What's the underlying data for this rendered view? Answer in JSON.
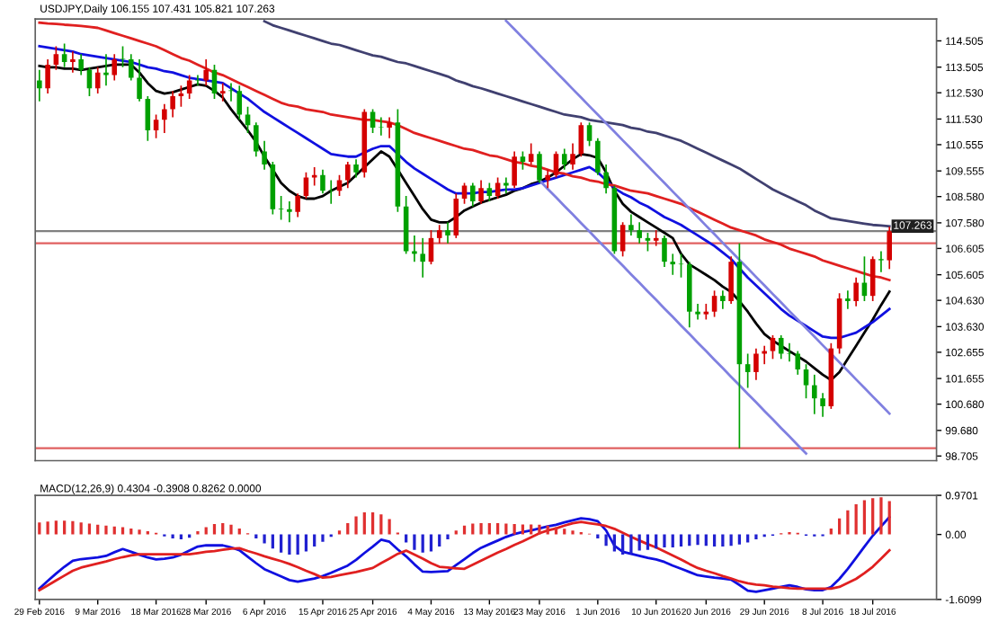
{
  "chart_data": [
    {
      "type": "candlestick",
      "title": "USDJPY,Daily 106.155 107.431 105.821 107.263",
      "categories": [
        null,
        null,
        null,
        null,
        null,
        null,
        null,
        null,
        null,
        null,
        null,
        null,
        null,
        null,
        null,
        null,
        null,
        null,
        null,
        null,
        null,
        null,
        null,
        null,
        null,
        null,
        null,
        null,
        null,
        null,
        null,
        null,
        null,
        null,
        null,
        null,
        null,
        null,
        null,
        null,
        null,
        null,
        null,
        null,
        null,
        null,
        null,
        null,
        null,
        null,
        null,
        null,
        null,
        null,
        null,
        null,
        null,
        null,
        null,
        null,
        null,
        null,
        null,
        null,
        null,
        null,
        null,
        null,
        null,
        null,
        null,
        null,
        null,
        null,
        null,
        null,
        null,
        null,
        null,
        null,
        null,
        null,
        null,
        null,
        null,
        null,
        null,
        null,
        null,
        null,
        null,
        null,
        null,
        null,
        null,
        null,
        null,
        null,
        null,
        null,
        null,
        null,
        null
      ],
      "ohlc": [
        [
          113.0,
          113.4,
          112.2,
          112.7
        ],
        [
          112.7,
          113.8,
          112.5,
          113.6
        ],
        [
          113.6,
          114.3,
          113.4,
          114.0
        ],
        [
          114.0,
          114.4,
          113.5,
          113.7
        ],
        [
          113.7,
          114.1,
          113.3,
          113.8
        ],
        [
          113.8,
          114.0,
          113.2,
          113.4
        ],
        [
          113.4,
          113.5,
          112.4,
          112.7
        ],
        [
          112.7,
          113.5,
          112.5,
          113.3
        ],
        [
          113.3,
          114.0,
          112.8,
          113.2
        ],
        [
          113.2,
          114.0,
          113.0,
          113.8
        ],
        [
          113.8,
          114.3,
          113.5,
          113.8
        ],
        [
          113.8,
          114.0,
          113.0,
          113.1
        ],
        [
          113.1,
          113.8,
          112.2,
          112.3
        ],
        [
          112.3,
          112.4,
          110.7,
          111.1
        ],
        [
          111.1,
          111.7,
          110.8,
          111.5
        ],
        [
          111.5,
          112.1,
          111.0,
          111.9
        ],
        [
          111.9,
          112.6,
          111.6,
          112.4
        ],
        [
          112.4,
          112.8,
          112.0,
          112.5
        ],
        [
          112.5,
          113.2,
          112.3,
          113.0
        ],
        [
          113.0,
          113.2,
          112.8,
          113.0
        ],
        [
          113.0,
          113.8,
          112.8,
          113.4
        ],
        [
          113.4,
          113.6,
          112.3,
          112.5
        ],
        [
          112.5,
          112.9,
          112.2,
          112.6
        ],
        [
          112.6,
          112.9,
          112.2,
          112.6
        ],
        [
          112.6,
          112.8,
          111.5,
          111.7
        ],
        [
          111.7,
          112.0,
          111.0,
          111.3
        ],
        [
          111.3,
          111.4,
          110.1,
          110.3
        ],
        [
          110.3,
          110.7,
          109.6,
          109.8
        ],
        [
          109.8,
          109.9,
          107.9,
          108.1
        ],
        [
          108.1,
          108.6,
          107.7,
          108.1
        ],
        [
          108.1,
          108.4,
          107.6,
          108.0
        ],
        [
          108.0,
          108.7,
          107.8,
          108.6
        ],
        [
          108.6,
          109.5,
          108.5,
          109.3
        ],
        [
          109.3,
          109.7,
          109.0,
          109.4
        ],
        [
          109.4,
          109.6,
          108.7,
          108.8
        ],
        [
          108.8,
          109.2,
          108.3,
          108.8
        ],
        [
          108.8,
          109.4,
          108.6,
          109.2
        ],
        [
          109.2,
          109.9,
          108.9,
          109.8
        ],
        [
          109.8,
          110.0,
          109.3,
          109.5
        ],
        [
          109.5,
          111.9,
          109.3,
          111.8
        ],
        [
          111.8,
          111.9,
          111.0,
          111.2
        ],
        [
          111.2,
          111.6,
          110.9,
          111.2
        ],
        [
          111.2,
          111.6,
          110.8,
          111.4
        ],
        [
          111.4,
          111.9,
          108.0,
          108.2
        ],
        [
          108.2,
          108.6,
          106.4,
          106.5
        ],
        [
          106.5,
          107.1,
          106.1,
          106.4
        ],
        [
          106.4,
          107.0,
          105.5,
          106.1
        ],
        [
          106.1,
          107.3,
          106.0,
          107.0
        ],
        [
          107.0,
          107.5,
          106.8,
          107.3
        ],
        [
          107.3,
          107.6,
          106.8,
          107.1
        ],
        [
          107.1,
          108.7,
          107.0,
          108.5
        ],
        [
          108.5,
          109.1,
          108.3,
          109.0
        ],
        [
          109.0,
          109.1,
          108.2,
          108.4
        ],
        [
          108.4,
          109.2,
          108.3,
          108.9
        ],
        [
          108.9,
          109.1,
          108.4,
          108.6
        ],
        [
          108.6,
          109.3,
          108.5,
          109.1
        ],
        [
          109.1,
          109.3,
          108.7,
          109.0
        ],
        [
          109.0,
          110.3,
          108.9,
          110.1
        ],
        [
          110.1,
          110.3,
          109.6,
          109.9
        ],
        [
          109.9,
          110.6,
          109.8,
          110.2
        ],
        [
          110.2,
          110.3,
          109.1,
          109.2
        ],
        [
          109.2,
          109.6,
          108.9,
          109.4
        ],
        [
          109.4,
          110.3,
          109.3,
          110.2
        ],
        [
          110.2,
          110.4,
          109.6,
          109.8
        ],
        [
          109.8,
          110.6,
          109.6,
          110.2
        ],
        [
          110.2,
          111.4,
          110.1,
          111.3
        ],
        [
          111.3,
          111.4,
          110.5,
          110.7
        ],
        [
          110.7,
          110.8,
          109.4,
          109.5
        ],
        [
          109.5,
          109.8,
          108.7,
          108.9
        ],
        [
          108.9,
          109.0,
          106.4,
          106.5
        ],
        [
          106.5,
          107.6,
          106.3,
          107.5
        ],
        [
          107.5,
          107.9,
          107.1,
          107.3
        ],
        [
          107.3,
          107.6,
          106.8,
          107.0
        ],
        [
          107.0,
          107.2,
          106.5,
          106.9
        ],
        [
          106.9,
          107.3,
          106.7,
          107.0
        ],
        [
          107.0,
          107.1,
          105.9,
          106.1
        ],
        [
          106.1,
          106.4,
          105.6,
          106.0
        ],
        [
          106.0,
          106.4,
          105.5,
          106.0
        ],
        [
          106.0,
          106.1,
          103.6,
          104.2
        ],
        [
          104.2,
          104.5,
          103.9,
          104.1
        ],
        [
          104.1,
          104.5,
          103.9,
          104.2
        ],
        [
          104.2,
          105.0,
          104.0,
          104.8
        ],
        [
          104.8,
          105.0,
          104.3,
          104.6
        ],
        [
          104.6,
          106.3,
          104.5,
          106.1
        ],
        [
          106.1,
          106.8,
          99.0,
          102.2
        ],
        [
          102.2,
          102.6,
          101.3,
          101.9
        ],
        [
          101.9,
          102.8,
          101.6,
          102.6
        ],
        [
          102.6,
          102.9,
          102.2,
          102.7
        ],
        [
          102.7,
          103.3,
          102.4,
          103.2
        ],
        [
          103.2,
          103.3,
          102.4,
          102.6
        ],
        [
          102.6,
          103.0,
          102.3,
          102.6
        ],
        [
          102.6,
          102.7,
          101.8,
          102.0
        ],
        [
          102.0,
          102.2,
          100.9,
          101.4
        ],
        [
          101.4,
          101.8,
          100.3,
          100.9
        ],
        [
          100.9,
          101.1,
          100.2,
          100.6
        ],
        [
          100.6,
          103.0,
          100.5,
          102.8
        ],
        [
          102.8,
          104.9,
          102.6,
          104.7
        ],
        [
          104.7,
          105.0,
          104.3,
          104.6
        ],
        [
          104.6,
          105.5,
          104.4,
          105.3
        ],
        [
          105.3,
          106.3,
          104.6,
          104.8
        ],
        [
          104.8,
          106.3,
          104.6,
          106.2
        ],
        [
          106.2,
          106.5,
          105.7,
          106.155
        ],
        [
          106.155,
          107.431,
          105.821,
          107.263
        ]
      ],
      "colors": [
        "#00a000",
        "#d40000",
        "#d40000",
        "#00a000",
        "#d40000",
        "#00a000",
        "#00a000",
        "#d40000",
        "#00a000",
        "#d40000",
        "#00a000",
        "#00a000",
        "#00a000",
        "#00a000",
        "#d40000",
        "#d40000",
        "#d40000",
        "#d40000",
        "#d40000",
        "#00a000",
        "#d40000",
        "#00a000",
        "#d40000",
        "#00a000",
        "#00a000",
        "#00a000",
        "#00a000",
        "#00a000",
        "#00a000",
        "#00a000",
        "#00a000",
        "#d40000",
        "#d40000",
        "#d40000",
        "#00a000",
        "#00a000",
        "#d40000",
        "#d40000",
        "#00a000",
        "#d40000",
        "#00a000",
        "#00a000",
        "#d40000",
        "#00a000",
        "#00a000",
        "#00a000",
        "#00a000",
        "#d40000",
        "#d40000",
        "#00a000",
        "#d40000",
        "#d40000",
        "#00a000",
        "#d40000",
        "#00a000",
        "#d40000",
        "#00a000",
        "#d40000",
        "#00a000",
        "#d40000",
        "#00a000",
        "#d40000",
        "#d40000",
        "#00a000",
        "#d40000",
        "#d40000",
        "#00a000",
        "#00a000",
        "#00a000",
        "#00a000",
        "#d40000",
        "#00a000",
        "#00a000",
        "#00a000",
        "#d40000",
        "#00a000",
        "#00a000",
        "#00a000",
        "#00a000",
        "#00a000",
        "#d40000",
        "#d40000",
        "#00a000",
        "#d40000",
        "#00a000",
        "#00a000",
        "#d40000",
        "#d40000",
        "#d40000",
        "#00a000",
        "#00a000",
        "#00a000",
        "#00a000",
        "#00a000",
        "#00a000",
        "#d40000",
        "#d40000",
        "#00a000",
        "#d40000",
        "#00a000",
        "#d40000",
        "#00a000",
        "#d40000"
      ],
      "series": [
        {
          "type": "line",
          "color": "#000000",
          "values": [
            113.55,
            113.5,
            113.5,
            113.45,
            113.45,
            113.4,
            113.45,
            113.5,
            113.55,
            113.6,
            113.6,
            113.6,
            113.3,
            112.9,
            112.6,
            112.5,
            112.55,
            112.65,
            112.75,
            112.85,
            112.8,
            112.6,
            112.35,
            111.9,
            111.5,
            111.1,
            110.66,
            110.1,
            109.6,
            109.1,
            108.8,
            108.6,
            108.5,
            108.5,
            108.6,
            108.8,
            108.95,
            109.1,
            109.4,
            109.7,
            110.0,
            110.3,
            110.1,
            109.6,
            109.1,
            108.6,
            108.1,
            107.7,
            107.6,
            107.6,
            107.8,
            108.05,
            108.2,
            108.35,
            108.45,
            108.55,
            108.65,
            108.8,
            108.9,
            109.05,
            109.15,
            109.3,
            109.5,
            109.75,
            110.0,
            110.2,
            110.15,
            110.05,
            109.5,
            108.8,
            108.3,
            108.0,
            107.8,
            107.6,
            107.4,
            107.2,
            107.0,
            106.4,
            106.0,
            105.8,
            105.6,
            105.4,
            105.15,
            104.95,
            104.6,
            104.2,
            103.75,
            103.35,
            103.1,
            102.9,
            102.7,
            102.5,
            102.3,
            102.05,
            101.8,
            101.6,
            101.9,
            102.4,
            102.9,
            103.4,
            103.9,
            104.45,
            104.96
          ]
        },
        {
          "type": "line",
          "color": "#1010e0",
          "values": [
            114.3,
            114.25,
            114.2,
            114.15,
            114.1,
            114.0,
            113.95,
            113.9,
            113.85,
            113.8,
            113.75,
            113.7,
            113.6,
            113.5,
            113.45,
            113.35,
            113.3,
            113.2,
            113.1,
            113.05,
            113.0,
            112.95,
            112.9,
            112.7,
            112.5,
            112.3,
            112.05,
            111.8,
            111.6,
            111.4,
            111.2,
            111.0,
            110.8,
            110.6,
            110.4,
            110.2,
            110.15,
            110.1,
            110.1,
            110.25,
            110.4,
            110.5,
            110.5,
            110.2,
            109.9,
            109.65,
            109.45,
            109.25,
            109.05,
            108.85,
            108.7,
            108.7,
            108.7,
            108.75,
            108.75,
            108.8,
            108.85,
            108.85,
            108.9,
            109.0,
            109.1,
            109.2,
            109.3,
            109.4,
            109.5,
            109.6,
            109.7,
            109.5,
            109.2,
            108.9,
            108.7,
            108.55,
            108.35,
            108.2,
            108.0,
            107.8,
            107.65,
            107.5,
            107.3,
            107.1,
            106.9,
            106.7,
            106.45,
            106.2,
            105.85,
            105.5,
            105.2,
            104.9,
            104.6,
            104.3,
            104.05,
            103.85,
            103.65,
            103.45,
            103.25,
            103.2,
            103.2,
            103.3,
            103.4,
            103.6,
            103.8,
            104.05,
            104.3
          ]
        },
        {
          "type": "line",
          "color": "#e02020",
          "values": [
            115.2,
            115.17,
            115.15,
            115.12,
            115.1,
            115.07,
            115.04,
            115.0,
            114.9,
            114.8,
            114.7,
            114.6,
            114.5,
            114.4,
            114.3,
            114.15,
            114.0,
            113.85,
            113.75,
            113.6,
            113.45,
            113.3,
            113.2,
            113.05,
            112.9,
            112.75,
            112.6,
            112.45,
            112.3,
            112.15,
            112.05,
            112.0,
            111.9,
            111.85,
            111.8,
            111.7,
            111.65,
            111.6,
            111.55,
            111.5,
            111.5,
            111.45,
            111.4,
            111.3,
            111.15,
            111.0,
            110.9,
            110.8,
            110.7,
            110.6,
            110.5,
            110.4,
            110.35,
            110.25,
            110.15,
            110.1,
            110.0,
            109.9,
            109.85,
            109.75,
            109.7,
            109.6,
            109.5,
            109.45,
            109.35,
            109.3,
            109.2,
            109.15,
            109.05,
            109.0,
            108.9,
            108.8,
            108.75,
            108.7,
            108.6,
            108.5,
            108.4,
            108.3,
            108.15,
            108.0,
            107.85,
            107.7,
            107.55,
            107.4,
            107.3,
            107.2,
            107.1,
            106.95,
            106.85,
            106.75,
            106.6,
            106.5,
            106.4,
            106.3,
            106.15,
            106.05,
            105.95,
            105.85,
            105.75,
            105.65,
            105.55,
            105.5,
            105.4
          ]
        },
        {
          "type": "line",
          "color": "#404070",
          "values": [
            null,
            null,
            null,
            null,
            null,
            null,
            null,
            null,
            null,
            null,
            null,
            null,
            null,
            null,
            null,
            null,
            null,
            null,
            null,
            null,
            null,
            null,
            null,
            null,
            null,
            null,
            null,
            115.25,
            115.1,
            115.0,
            114.9,
            114.8,
            114.7,
            114.6,
            114.5,
            114.4,
            114.35,
            114.25,
            114.15,
            114.05,
            113.95,
            113.9,
            113.8,
            113.7,
            113.65,
            113.55,
            113.45,
            113.35,
            113.25,
            113.15,
            113.0,
            112.9,
            112.78,
            112.7,
            112.6,
            112.5,
            112.4,
            112.3,
            112.2,
            112.1,
            112.0,
            111.9,
            111.8,
            111.7,
            111.65,
            111.6,
            111.5,
            111.45,
            111.4,
            111.35,
            111.3,
            111.2,
            111.15,
            111.05,
            111.0,
            110.9,
            110.8,
            110.7,
            110.55,
            110.4,
            110.25,
            110.1,
            109.95,
            109.8,
            109.65,
            109.45,
            109.25,
            109.05,
            108.85,
            108.7,
            108.55,
            108.4,
            108.25,
            108.05,
            107.9,
            107.75,
            107.7,
            107.65,
            107.6,
            107.55,
            107.5,
            107.48,
            107.45
          ]
        },
        {
          "type": "line",
          "color": "#8080e0",
          "values": [
            null,
            null,
            null,
            null,
            null,
            null,
            null,
            null,
            null,
            null,
            null,
            null,
            null,
            null,
            null,
            null,
            null,
            null,
            null,
            null,
            null,
            null,
            null,
            null,
            null,
            null,
            null,
            null,
            null,
            null,
            null,
            null,
            null,
            null,
            null,
            null,
            null,
            null,
            null,
            null,
            null,
            null,
            null,
            null,
            null,
            null,
            null,
            null,
            null,
            null,
            null,
            null,
            null,
            null,
            null,
            null,
            115.27,
            114.95,
            114.62,
            114.3,
            113.97,
            113.65,
            113.32,
            113.0,
            112.67,
            112.35,
            112.02,
            111.7,
            111.37,
            111.05,
            110.72,
            110.4,
            110.07,
            109.75,
            109.42,
            109.1,
            108.77,
            108.45,
            108.12,
            107.8,
            107.47,
            107.15,
            106.82,
            106.5,
            106.17,
            105.85,
            105.52,
            105.2,
            104.87,
            104.55,
            104.22,
            103.9,
            103.57,
            103.25,
            102.92,
            102.6,
            102.27,
            101.95,
            101.62,
            101.3,
            100.97,
            100.65,
            100.32
          ]
        },
        {
          "type": "line",
          "color": "#8080e0",
          "values": [
            null,
            null,
            null,
            null,
            null,
            null,
            null,
            null,
            null,
            null,
            null,
            null,
            null,
            null,
            null,
            null,
            null,
            null,
            null,
            null,
            null,
            null,
            null,
            null,
            null,
            null,
            null,
            null,
            null,
            null,
            null,
            null,
            null,
            null,
            null,
            null,
            null,
            null,
            null,
            null,
            null,
            null,
            null,
            null,
            null,
            null,
            null,
            null,
            null,
            null,
            null,
            null,
            null,
            null,
            null,
            null,
            null,
            null,
            null,
            null,
            109.2,
            108.87,
            108.55,
            108.22,
            107.9,
            107.57,
            107.25,
            106.92,
            106.6,
            106.27,
            105.95,
            105.62,
            105.3,
            104.97,
            104.65,
            104.32,
            104.0,
            103.67,
            103.35,
            103.02,
            102.7,
            102.37,
            102.05,
            101.72,
            101.4,
            101.07,
            100.75,
            100.42,
            100.1,
            99.77,
            99.45,
            99.12,
            98.8,
            null,
            null,
            null,
            null,
            null,
            null,
            null,
            null,
            null,
            null
          ]
        }
      ],
      "ref_lines": [
        {
          "axis": "y",
          "value": 107.263,
          "label": "107.263",
          "color": "#808080"
        },
        {
          "axis": "y",
          "value": 106.8,
          "color": "#e06060"
        },
        {
          "axis": "y",
          "value": 99.0,
          "color": "#e06060"
        }
      ],
      "ylim": [
        98.53,
        115.34
      ],
      "yticks": [
        114.505,
        113.505,
        {
          "value": 112.53,
          "label": "112.530"
        },
        {
          "value": 111.53,
          "label": "111.530"
        },
        110.555,
        109.555,
        {
          "value": 108.58,
          "label": "108.580"
        },
        {
          "value": 107.58,
          "label": "107.580"
        },
        106.605,
        105.605,
        {
          "value": 104.63,
          "label": "104.630"
        },
        {
          "value": 103.63,
          "label": "103.630"
        },
        102.655,
        101.655,
        {
          "value": 100.68,
          "label": "100.680"
        },
        {
          "value": 99.68,
          "label": "99.680"
        },
        98.705
      ]
    },
    {
      "type": "bar",
      "title": "MACD(12,26,9) 0.4304 -0.3908 0.8262 0.0000",
      "categories": [
        "29 Feb 2016",
        null,
        null,
        null,
        null,
        null,
        null,
        "9 Mar 2016",
        null,
        null,
        null,
        null,
        null,
        null,
        "18 Mar 2016",
        null,
        null,
        null,
        null,
        null,
        "28 Mar 2016",
        null,
        null,
        null,
        null,
        null,
        null,
        "6 Apr 2016",
        null,
        null,
        null,
        null,
        null,
        null,
        "15 Apr 2016",
        null,
        null,
        null,
        null,
        null,
        "25 Apr 2016",
        null,
        null,
        null,
        null,
        null,
        null,
        "4 May 2016",
        null,
        null,
        null,
        null,
        null,
        null,
        "13 May 2016",
        null,
        null,
        null,
        null,
        null,
        "23 May 2016",
        null,
        null,
        null,
        null,
        null,
        null,
        "1 Jun 2016",
        null,
        null,
        null,
        null,
        null,
        null,
        "10 Jun 2016",
        null,
        null,
        null,
        null,
        null,
        "20 Jun 2016",
        null,
        null,
        null,
        null,
        null,
        null,
        "29 Jun 2016",
        null,
        null,
        null,
        null,
        null,
        null,
        "8 Jul 2016",
        null,
        null,
        null,
        null,
        null,
        "18 Jul 2016",
        null,
        null
      ],
      "series": [
        {
          "type": "bar",
          "color": "#e03030",
          "values": [
            0.3,
            0.32,
            0.34,
            0.34,
            0.33,
            0.3,
            0.27,
            0.24,
            0.22,
            0.2,
            0.18,
            0.15,
            0.12,
            0.08,
            0.04,
            null,
            null,
            null,
            null,
            0.08,
            0.18,
            0.26,
            0.28,
            0.24,
            0.15,
            0.03,
            null,
            null,
            null,
            null,
            null,
            null,
            null,
            null,
            null,
            null,
            0.1,
            0.28,
            0.45,
            0.55,
            0.55,
            0.5,
            0.38,
            0.05,
            null,
            null,
            null,
            null,
            null,
            null,
            0.1,
            0.22,
            0.27,
            0.28,
            0.28,
            0.28,
            0.27,
            0.26,
            0.25,
            0.25,
            0.24,
            0.22,
            0.18,
            0.14,
            0.1,
            0.06,
            0.02,
            null,
            null,
            null,
            null,
            null,
            null,
            null,
            null,
            null,
            null,
            null,
            null,
            null,
            null,
            null,
            null,
            null,
            null,
            null,
            null,
            null,
            null,
            0.03,
            0.06,
            0.04,
            null,
            null,
            null,
            0.15,
            0.4,
            0.6,
            0.75,
            0.85,
            0.9,
            0.92,
            0.8262
          ]
        },
        {
          "type": "bar",
          "color": "#2020d0",
          "values": [
            null,
            null,
            null,
            null,
            null,
            null,
            null,
            null,
            null,
            null,
            null,
            null,
            null,
            null,
            null,
            -0.05,
            -0.1,
            -0.12,
            -0.08,
            null,
            null,
            null,
            null,
            null,
            null,
            null,
            -0.1,
            -0.22,
            -0.35,
            -0.45,
            -0.5,
            -0.5,
            -0.42,
            -0.3,
            -0.18,
            -0.06,
            null,
            null,
            null,
            null,
            null,
            null,
            null,
            null,
            -0.2,
            -0.38,
            -0.45,
            -0.42,
            -0.3,
            -0.12,
            null,
            null,
            null,
            null,
            null,
            null,
            null,
            null,
            null,
            null,
            null,
            null,
            null,
            null,
            null,
            null,
            null,
            -0.1,
            -0.28,
            -0.42,
            -0.5,
            -0.48,
            -0.4,
            -0.38,
            -0.35,
            -0.32,
            -0.32,
            -0.3,
            -0.28,
            -0.26,
            -0.28,
            -0.3,
            -0.3,
            -0.28,
            -0.25,
            -0.2,
            -0.12,
            -0.06,
            -0.03,
            null,
            null,
            null,
            -0.03,
            -0.05,
            -0.04,
            null,
            null,
            null,
            null,
            null,
            null,
            null,
            null
          ]
        },
        {
          "type": "line",
          "color": "#1010e0",
          "values": [
            -1.34,
            -1.15,
            -0.97,
            -0.8,
            -0.65,
            -0.61,
            -0.59,
            -0.57,
            -0.53,
            -0.44,
            -0.36,
            -0.43,
            -0.5,
            -0.57,
            -0.62,
            -0.6,
            -0.57,
            -0.5,
            -0.4,
            -0.3,
            -0.27,
            -0.27,
            -0.27,
            -0.32,
            -0.39,
            -0.55,
            -0.71,
            -0.86,
            -0.95,
            -1.04,
            -1.13,
            -1.17,
            -1.13,
            -1.09,
            -1.03,
            -0.95,
            -0.86,
            -0.77,
            -0.63,
            -0.46,
            -0.3,
            -0.13,
            -0.18,
            -0.37,
            -0.54,
            -0.74,
            -0.92,
            -0.93,
            -0.92,
            -0.91,
            -0.76,
            -0.61,
            -0.46,
            -0.33,
            -0.24,
            -0.15,
            -0.06,
            0.01,
            0.06,
            0.1,
            0.15,
            0.2,
            0.24,
            0.3,
            0.35,
            0.4,
            0.38,
            0.33,
            0.1,
            -0.28,
            -0.43,
            -0.48,
            -0.53,
            -0.58,
            -0.62,
            -0.68,
            -0.77,
            -0.85,
            -0.93,
            -1.01,
            -1.04,
            -1.07,
            -1.09,
            -1.12,
            -1.25,
            -1.39,
            -1.42,
            -1.38,
            -1.34,
            -1.3,
            -1.26,
            -1.3,
            -1.36,
            -1.38,
            -1.38,
            -1.3,
            -1.1,
            -0.85,
            -0.58,
            -0.3,
            -0.03,
            0.2,
            0.4304
          ]
        },
        {
          "type": "line",
          "color": "#e02020",
          "values": [
            -1.38,
            -1.26,
            -1.14,
            -1.02,
            -0.9,
            -0.82,
            -0.77,
            -0.72,
            -0.67,
            -0.61,
            -0.56,
            -0.52,
            -0.49,
            -0.49,
            -0.49,
            -0.49,
            -0.49,
            -0.49,
            -0.49,
            -0.46,
            -0.43,
            -0.41,
            -0.38,
            -0.35,
            -0.34,
            -0.41,
            -0.47,
            -0.54,
            -0.6,
            -0.66,
            -0.73,
            -0.81,
            -0.9,
            -0.98,
            -1.07,
            -1.05,
            -1.01,
            -0.97,
            -0.93,
            -0.88,
            -0.83,
            -0.71,
            -0.6,
            -0.48,
            -0.4,
            -0.5,
            -0.6,
            -0.71,
            -0.8,
            -0.82,
            -0.84,
            -0.85,
            -0.75,
            -0.65,
            -0.55,
            -0.45,
            -0.36,
            -0.26,
            -0.17,
            -0.07,
            0.03,
            0.1,
            0.15,
            0.22,
            0.28,
            0.31,
            0.28,
            0.25,
            0.21,
            0.14,
            0.04,
            -0.06,
            -0.15,
            -0.24,
            -0.32,
            -0.42,
            -0.52,
            -0.62,
            -0.73,
            -0.83,
            -0.9,
            -0.96,
            -1.03,
            -1.09,
            -1.16,
            -1.21,
            -1.24,
            -1.26,
            -1.29,
            -1.31,
            -1.33,
            -1.34,
            -1.34,
            -1.34,
            -1.34,
            -1.34,
            -1.3,
            -1.2,
            -1.1,
            -0.96,
            -0.8,
            -0.6,
            -0.3908
          ]
        }
      ],
      "ylim": [
        -1.6099,
        0.9701
      ],
      "yticks": [
        0.9701,
        {
          "value": 0,
          "label": "0.00"
        },
        -1.6099
      ]
    }
  ]
}
